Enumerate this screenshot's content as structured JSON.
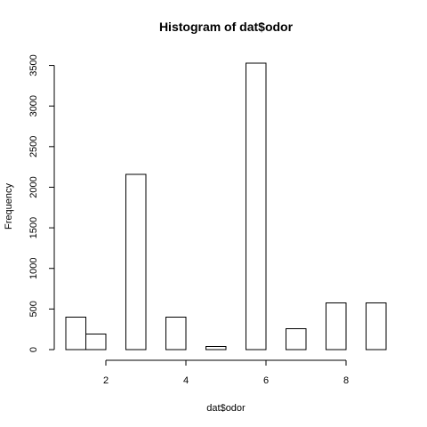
{
  "chart_data": {
    "type": "bar",
    "title": "Histogram of dat$odor",
    "xlabel": "dat$odor",
    "ylabel": "Frequency",
    "bins": [
      {
        "x0": 1.0,
        "x1": 1.5,
        "value": 400
      },
      {
        "x0": 1.5,
        "x1": 2.0,
        "value": 192
      },
      {
        "x0": 2.0,
        "x1": 2.5,
        "value": 0
      },
      {
        "x0": 2.5,
        "x1": 3.0,
        "value": 2160
      },
      {
        "x0": 3.0,
        "x1": 3.5,
        "value": 0
      },
      {
        "x0": 3.5,
        "x1": 4.0,
        "value": 400
      },
      {
        "x0": 4.0,
        "x1": 4.5,
        "value": 0
      },
      {
        "x0": 4.5,
        "x1": 5.0,
        "value": 36
      },
      {
        "x0": 5.0,
        "x1": 5.5,
        "value": 0
      },
      {
        "x0": 5.5,
        "x1": 6.0,
        "value": 3528
      },
      {
        "x0": 6.0,
        "x1": 6.5,
        "value": 0
      },
      {
        "x0": 6.5,
        "x1": 7.0,
        "value": 256
      },
      {
        "x0": 7.0,
        "x1": 7.5,
        "value": 0
      },
      {
        "x0": 7.5,
        "x1": 8.0,
        "value": 576
      },
      {
        "x0": 8.0,
        "x1": 8.5,
        "value": 0
      },
      {
        "x0": 8.5,
        "x1": 9.0,
        "value": 576
      }
    ],
    "xlim": [
      1,
      9
    ],
    "ylim": [
      0,
      3528
    ],
    "xticks": [
      2,
      4,
      6,
      8
    ],
    "yticks": [
      0,
      500,
      1000,
      1500,
      2000,
      2500,
      3000,
      3500
    ],
    "grid": false,
    "bar_fill": "#ffffff",
    "bar_stroke": "#000000"
  }
}
